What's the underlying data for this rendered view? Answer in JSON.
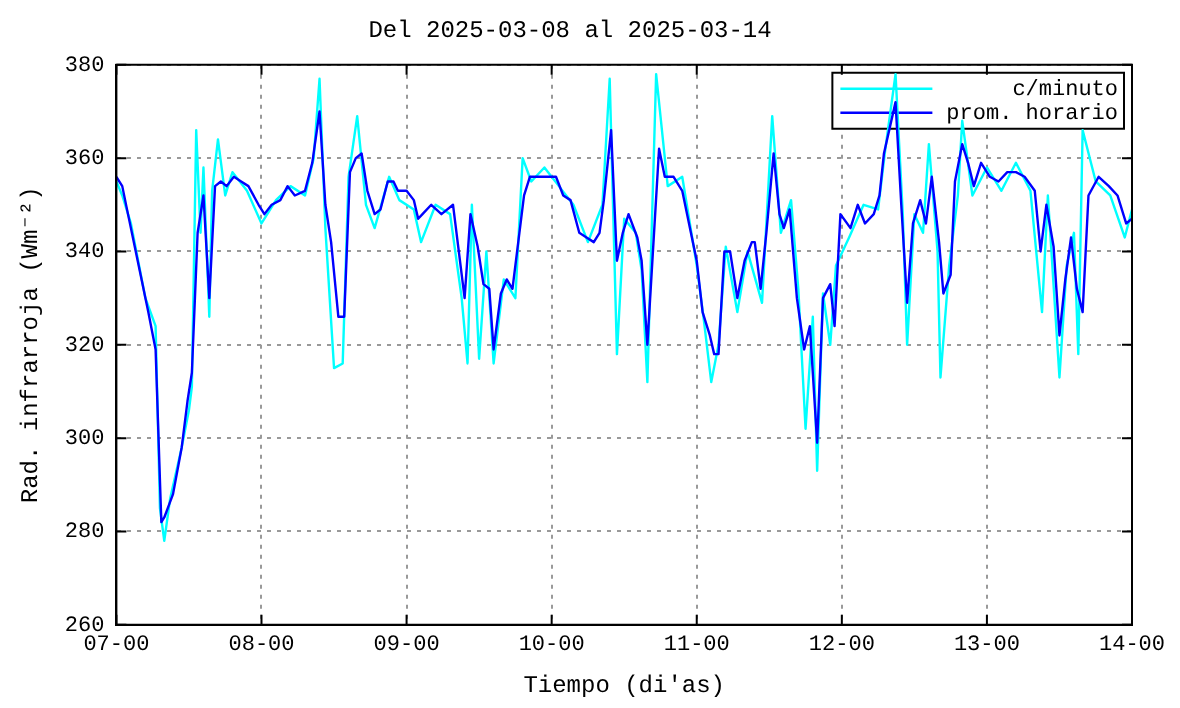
{
  "chart_data": {
    "type": "line",
    "title": "Del 2025-03-08 al 2025-03-14",
    "xlabel": "Tiempo (di'as)",
    "ylabel": "Rad. infrarroja (Wm⁻²)",
    "xlim": [
      "2025-03-07T00:00",
      "2025-03-14T00:00"
    ],
    "xticks": [
      {
        "value": "2025-03-07T00:00",
        "label": "07-00"
      },
      {
        "value": "2025-03-08T00:00",
        "label": "08-00"
      },
      {
        "value": "2025-03-09T00:00",
        "label": "09-00"
      },
      {
        "value": "2025-03-10T00:00",
        "label": "10-00"
      },
      {
        "value": "2025-03-11T00:00",
        "label": "11-00"
      },
      {
        "value": "2025-03-12T00:00",
        "label": "12-00"
      },
      {
        "value": "2025-03-13T00:00",
        "label": "13-00"
      },
      {
        "value": "2025-03-14T00:00",
        "label": "14-00"
      }
    ],
    "ylim": [
      260,
      380
    ],
    "yticks": [
      260,
      280,
      300,
      320,
      340,
      360,
      380
    ],
    "grid": true,
    "legend": "top right",
    "marker": "none",
    "line_style": "solid",
    "series": [
      {
        "name": "c/minuto",
        "color": "#00ffff",
        "x": [
          "2025-03-07T00:00",
          "2025-03-07T00:58",
          "2025-03-07T02:24",
          "2025-03-07T04:48",
          "2025-03-07T06:29",
          "2025-03-07T07:12",
          "2025-03-07T07:55",
          "2025-03-07T08:53",
          "2025-03-07T10:48",
          "2025-03-07T12:00",
          "2025-03-07T12:29",
          "2025-03-07T13:12",
          "2025-03-07T13:55",
          "2025-03-07T14:24",
          "2025-03-07T15:22",
          "2025-03-07T15:50",
          "2025-03-07T16:48",
          "2025-03-07T18:00",
          "2025-03-07T19:12",
          "2025-03-07T21:36",
          "2025-03-08T00:00",
          "2025-03-08T02:24",
          "2025-03-08T04:48",
          "2025-03-08T07:12",
          "2025-03-08T08:38",
          "2025-03-08T09:36",
          "2025-03-08T10:34",
          "2025-03-08T12:00",
          "2025-03-08T13:26",
          "2025-03-08T14:24",
          "2025-03-08T15:50",
          "2025-03-08T17:17",
          "2025-03-08T18:43",
          "2025-03-08T21:07",
          "2025-03-08T22:48",
          "2025-03-09T01:12",
          "2025-03-09T02:24",
          "2025-03-09T04:48",
          "2025-03-09T07:12",
          "2025-03-09T09:07",
          "2025-03-09T10:05",
          "2025-03-09T10:48",
          "2025-03-09T12:00",
          "2025-03-09T13:12",
          "2025-03-09T14:24",
          "2025-03-09T16:05",
          "2025-03-09T18:00",
          "2025-03-09T19:12",
          "2025-03-09T20:38",
          "2025-03-09T22:48",
          "2025-03-10T01:12",
          "2025-03-10T03:36",
          "2025-03-10T06:00",
          "2025-03-10T08:24",
          "2025-03-10T09:36",
          "2025-03-10T10:48",
          "2025-03-10T12:00",
          "2025-03-10T13:55",
          "2025-03-10T14:53",
          "2025-03-10T15:50",
          "2025-03-10T17:17",
          "2025-03-10T19:12",
          "2025-03-10T21:36",
          "2025-03-11T00:00",
          "2025-03-11T01:12",
          "2025-03-11T02:24",
          "2025-03-11T03:36",
          "2025-03-11T04:48",
          "2025-03-11T06:43",
          "2025-03-11T08:24",
          "2025-03-11T10:48",
          "2025-03-11T12:29",
          "2025-03-11T13:55",
          "2025-03-11T15:36",
          "2025-03-11T16:48",
          "2025-03-11T18:00",
          "2025-03-11T19:12",
          "2025-03-11T19:55",
          "2025-03-11T20:53",
          "2025-03-11T22:05",
          "2025-03-11T23:02",
          "2025-03-12T01:12",
          "2025-03-12T03:36",
          "2025-03-12T06:00",
          "2025-03-12T07:12",
          "2025-03-12T08:53",
          "2025-03-12T10:05",
          "2025-03-12T10:48",
          "2025-03-12T12:00",
          "2025-03-12T13:26",
          "2025-03-12T14:24",
          "2025-03-12T15:50",
          "2025-03-12T16:19",
          "2025-03-12T17:46",
          "2025-03-12T19:12",
          "2025-03-12T19:55",
          "2025-03-12T21:36",
          "2025-03-13T00:00",
          "2025-03-13T02:24",
          "2025-03-13T04:48",
          "2025-03-13T07:12",
          "2025-03-13T09:07",
          "2025-03-13T10:05",
          "2025-03-13T12:00",
          "2025-03-13T13:12",
          "2025-03-13T14:24",
          "2025-03-13T15:07",
          "2025-03-13T15:50",
          "2025-03-13T18:00",
          "2025-03-13T20:24",
          "2025-03-13T22:48",
          "2025-03-14T00:00"
        ],
        "values": [
          355,
          352,
          346,
          330,
          324,
          285,
          278,
          287,
          298,
          306,
          311,
          366,
          344,
          358,
          326,
          353,
          364,
          352,
          357,
          353,
          346,
          351,
          354,
          352,
          360,
          377,
          345,
          315,
          316,
          356,
          369,
          350,
          345,
          356,
          351,
          349,
          342,
          350,
          348,
          330,
          316,
          350,
          317,
          340,
          316,
          334,
          330,
          360,
          355,
          358,
          354,
          350,
          342,
          350,
          377,
          318,
          347,
          344,
          336,
          312,
          378,
          354,
          356,
          337,
          325,
          312,
          320,
          341,
          327,
          340,
          329,
          369,
          344,
          351,
          332,
          302,
          326,
          293,
          331,
          320,
          337,
          343,
          350,
          349,
          362,
          378,
          348,
          320,
          348,
          344,
          363,
          340,
          313,
          337,
          352,
          368,
          352,
          358,
          353,
          359,
          353,
          327,
          352,
          313,
          337,
          344,
          318,
          366,
          355,
          352,
          343,
          349
        ]
      },
      {
        "name": "prom. horario",
        "color": "#0000ff",
        "x": [
          "2025-03-07T00:00",
          "2025-03-07T00:58",
          "2025-03-07T01:55",
          "2025-03-07T05:17",
          "2025-03-07T06:29",
          "2025-03-07T07:26",
          "2025-03-07T07:55",
          "2025-03-07T09:22",
          "2025-03-07T10:48",
          "2025-03-07T11:46",
          "2025-03-07T12:29",
          "2025-03-07T13:26",
          "2025-03-07T14:24",
          "2025-03-07T15:22",
          "2025-03-07T16:19",
          "2025-03-07T17:17",
          "2025-03-07T18:14",
          "2025-03-07T19:26",
          "2025-03-07T20:38",
          "2025-03-07T21:50",
          "2025-03-07T23:31",
          "2025-03-08T00:29",
          "2025-03-08T01:41",
          "2025-03-08T03:07",
          "2025-03-08T04:19",
          "2025-03-08T05:31",
          "2025-03-08T07:12",
          "2025-03-08T08:24",
          "2025-03-08T09:36",
          "2025-03-08T10:34",
          "2025-03-08T11:31",
          "2025-03-08T12:43",
          "2025-03-08T13:41",
          "2025-03-08T14:38",
          "2025-03-08T15:36",
          "2025-03-08T16:34",
          "2025-03-08T17:31",
          "2025-03-08T18:43",
          "2025-03-08T19:41",
          "2025-03-08T20:53",
          "2025-03-08T21:50",
          "2025-03-08T22:34",
          "2025-03-09T00:00",
          "2025-03-09T01:12",
          "2025-03-09T01:55",
          "2025-03-09T02:38",
          "2025-03-09T04:05",
          "2025-03-09T05:46",
          "2025-03-09T07:41",
          "2025-03-09T09:36",
          "2025-03-09T10:34",
          "2025-03-09T11:46",
          "2025-03-09T12:43",
          "2025-03-09T13:41",
          "2025-03-09T14:24",
          "2025-03-09T15:36",
          "2025-03-09T16:34",
          "2025-03-09T17:31",
          "2025-03-09T19:26",
          "2025-03-09T20:24",
          "2025-03-09T22:05",
          "2025-03-10T00:43",
          "2025-03-10T01:55",
          "2025-03-10T03:07",
          "2025-03-10T04:34",
          "2025-03-10T05:46",
          "2025-03-10T06:58",
          "2025-03-10T07:55",
          "2025-03-10T08:38",
          "2025-03-10T09:50",
          "2025-03-10T10:48",
          "2025-03-10T11:46",
          "2025-03-10T12:43",
          "2025-03-10T14:10",
          "2025-03-10T14:53",
          "2025-03-10T15:50",
          "2025-03-10T17:46",
          "2025-03-10T18:43",
          "2025-03-10T20:10",
          "2025-03-10T21:36",
          "2025-03-10T23:02",
          "2025-03-11T00:00",
          "2025-03-11T00:58",
          "2025-03-11T02:10",
          "2025-03-11T02:53",
          "2025-03-11T03:36",
          "2025-03-11T04:34",
          "2025-03-11T05:31",
          "2025-03-11T06:43",
          "2025-03-11T07:55",
          "2025-03-11T09:07",
          "2025-03-11T09:36",
          "2025-03-11T10:34",
          "2025-03-11T11:31",
          "2025-03-11T12:43",
          "2025-03-11T13:41",
          "2025-03-11T14:24",
          "2025-03-11T15:22",
          "2025-03-11T16:34",
          "2025-03-11T17:46",
          "2025-03-11T18:43",
          "2025-03-11T19:55",
          "2025-03-11T20:53",
          "2025-03-11T22:05",
          "2025-03-11T22:48",
          "2025-03-11T23:46",
          "2025-03-12T01:26",
          "2025-03-12T02:38",
          "2025-03-12T03:50",
          "2025-03-12T05:17",
          "2025-03-12T06:14",
          "2025-03-12T06:58",
          "2025-03-12T08:53",
          "2025-03-12T09:50",
          "2025-03-12T10:48",
          "2025-03-12T11:46",
          "2025-03-12T12:58",
          "2025-03-12T13:55",
          "2025-03-12T14:53",
          "2025-03-12T16:05",
          "2025-03-12T16:48",
          "2025-03-12T18:00",
          "2025-03-12T18:43",
          "2025-03-12T19:55",
          "2025-03-12T20:53",
          "2025-03-12T21:50",
          "2025-03-12T23:02",
          "2025-03-13T00:29",
          "2025-03-13T01:55",
          "2025-03-13T03:22",
          "2025-03-13T04:48",
          "2025-03-13T06:14",
          "2025-03-13T07:55",
          "2025-03-13T08:53",
          "2025-03-13T09:50",
          "2025-03-13T11:02",
          "2025-03-13T12:00",
          "2025-03-13T12:58",
          "2025-03-13T13:55",
          "2025-03-13T14:53",
          "2025-03-13T15:50",
          "2025-03-13T16:48",
          "2025-03-13T18:29",
          "2025-03-13T20:10",
          "2025-03-13T21:36",
          "2025-03-13T23:02",
          "2025-03-14T00:00"
        ],
        "values": [
          356,
          354,
          348,
          327,
          319,
          282,
          283,
          288,
          298,
          308,
          314,
          344,
          352,
          330,
          354,
          355,
          354,
          356,
          355,
          354,
          350,
          348,
          350,
          351,
          354,
          352,
          353,
          359,
          370,
          350,
          342,
          326,
          326,
          357,
          360,
          361,
          353,
          348,
          349,
          355,
          355,
          353,
          353,
          351,
          347,
          348,
          350,
          348,
          350,
          330,
          348,
          341,
          333,
          332,
          319,
          331,
          334,
          332,
          352,
          356,
          356,
          356,
          352,
          351,
          344,
          343,
          342,
          344,
          351,
          366,
          338,
          344,
          348,
          343,
          338,
          320,
          362,
          356,
          356,
          353,
          344,
          338,
          327,
          322,
          318,
          318,
          340,
          340,
          330,
          338,
          342,
          342,
          332,
          344,
          361,
          348,
          345,
          349,
          330,
          319,
          324,
          299,
          330,
          333,
          324,
          348,
          345,
          350,
          346,
          348,
          352,
          361,
          372,
          350,
          329,
          346,
          351,
          346,
          356,
          342,
          331,
          335,
          355,
          363,
          359,
          354,
          359,
          356,
          355,
          357,
          357,
          356,
          353,
          340,
          350,
          341,
          322,
          334,
          343,
          332,
          327,
          352,
          356,
          354,
          352,
          346,
          347
        ]
      }
    ]
  }
}
